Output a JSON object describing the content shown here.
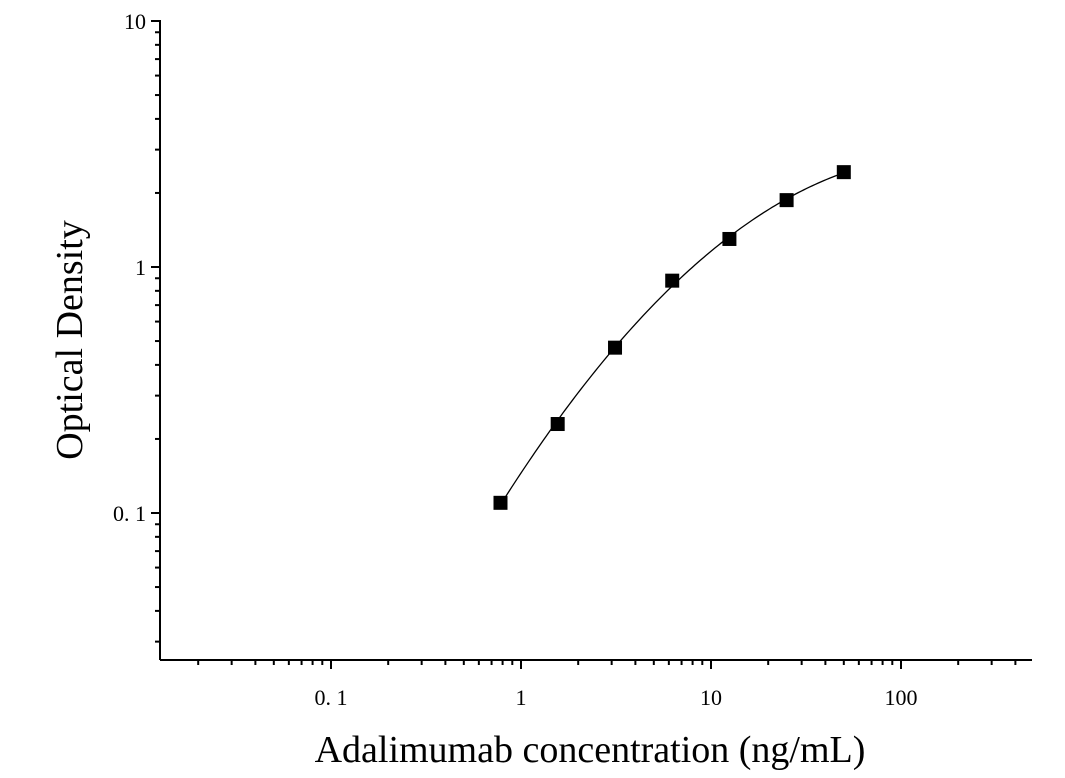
{
  "chart_data": {
    "type": "scatter",
    "xlabel": "Adalimumab concentration (ng/mL)",
    "ylabel": "Optical Density",
    "x_scale": "log",
    "y_scale": "log",
    "xlim": [
      0.0125,
      500
    ],
    "ylim": [
      0.025,
      10
    ],
    "x_ticks": [
      {
        "value": 0.1,
        "label": "0. 1"
      },
      {
        "value": 1,
        "label": "1"
      },
      {
        "value": 10,
        "label": "10"
      },
      {
        "value": 100,
        "label": "100"
      }
    ],
    "y_ticks": [
      {
        "value": 0.1,
        "label": "0. 1"
      },
      {
        "value": 1,
        "label": "1"
      },
      {
        "value": 10,
        "label": "10"
      }
    ],
    "series": [
      {
        "x": [
          0.78,
          1.56,
          3.125,
          6.25,
          12.5,
          25,
          50
        ],
        "y": [
          0.11,
          0.23,
          0.47,
          0.88,
          1.3,
          1.87,
          2.43
        ]
      }
    ],
    "fit_curve": true,
    "grid": false,
    "legend": "none"
  }
}
